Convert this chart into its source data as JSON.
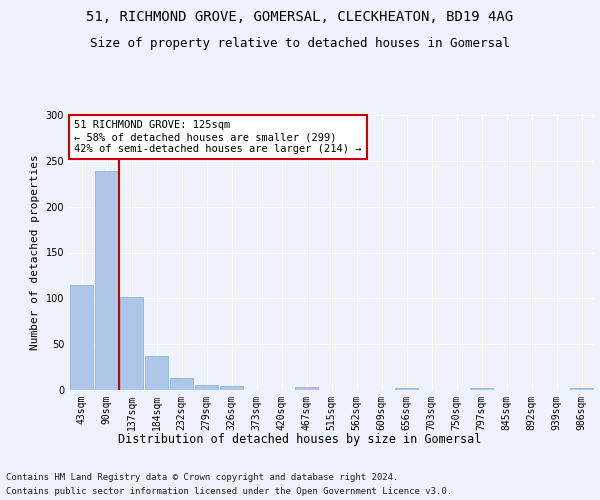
{
  "title1": "51, RICHMOND GROVE, GOMERSAL, CLECKHEATON, BD19 4AG",
  "title2": "Size of property relative to detached houses in Gomersal",
  "xlabel": "Distribution of detached houses by size in Gomersal",
  "ylabel": "Number of detached properties",
  "categories": [
    "43sqm",
    "90sqm",
    "137sqm",
    "184sqm",
    "232sqm",
    "279sqm",
    "326sqm",
    "373sqm",
    "420sqm",
    "467sqm",
    "515sqm",
    "562sqm",
    "609sqm",
    "656sqm",
    "703sqm",
    "750sqm",
    "797sqm",
    "845sqm",
    "892sqm",
    "939sqm",
    "986sqm"
  ],
  "values": [
    115,
    239,
    101,
    37,
    13,
    5,
    4,
    0,
    0,
    3,
    0,
    0,
    0,
    2,
    0,
    0,
    2,
    0,
    0,
    0,
    2
  ],
  "bar_color": "#aec6e8",
  "bar_edgecolor": "#7ab4d8",
  "vline_position": 1.5,
  "vline_color": "#cc0000",
  "annotation_text": "51 RICHMOND GROVE: 125sqm\n← 58% of detached houses are smaller (299)\n42% of semi-detached houses are larger (214) →",
  "annotation_box_edgecolor": "#cc0000",
  "ylim": [
    0,
    300
  ],
  "yticks": [
    0,
    50,
    100,
    150,
    200,
    250,
    300
  ],
  "footer1": "Contains HM Land Registry data © Crown copyright and database right 2024.",
  "footer2": "Contains public sector information licensed under the Open Government Licence v3.0.",
  "bg_color": "#eef2fa",
  "plot_bg_color": "#eef2fa",
  "title1_fontsize": 10,
  "title2_fontsize": 9,
  "xlabel_fontsize": 8.5,
  "ylabel_fontsize": 8,
  "tick_fontsize": 7,
  "annot_fontsize": 7.5,
  "footer_fontsize": 6.5
}
